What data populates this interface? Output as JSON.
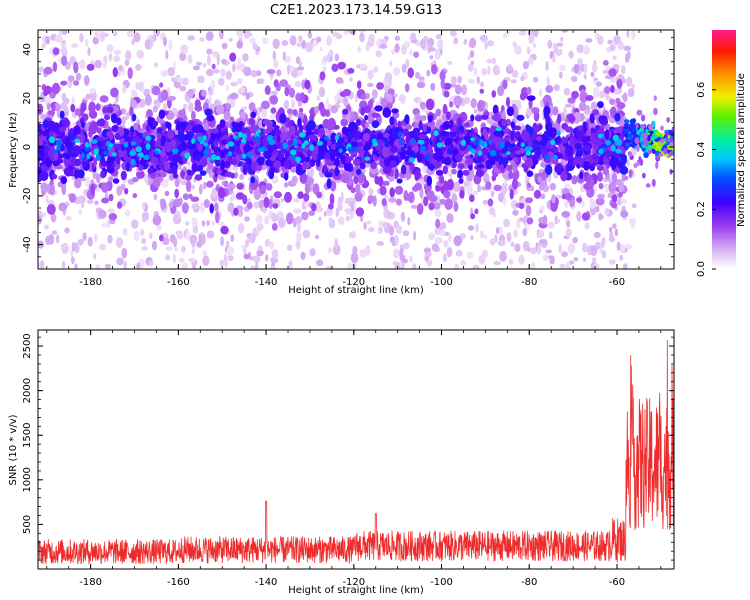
{
  "title": "C2E1.2023.173.14.59.G13",
  "chart_data": [
    {
      "type": "heatmap",
      "xlabel": "Height of straight line (km)",
      "ylabel": "Frequency (Hz)",
      "xlim": [
        -192,
        -47
      ],
      "ylim": [
        -50,
        48
      ],
      "xticks": [
        -180,
        -160,
        -140,
        -120,
        -100,
        -80,
        -60
      ],
      "yticks": [
        -40,
        -20,
        0,
        20,
        40
      ],
      "colorbar": {
        "label": "Normalized spectral amplitude",
        "range": [
          0,
          0.8
        ],
        "ticks": [
          0.0,
          0.2,
          0.4,
          0.6
        ],
        "colormap": "rainbow (white-lavender-violet-blue-cyan-green-yellow-red-magenta)"
      },
      "description_of_distribution": {
        "band_center_hz": 0,
        "band_halfwidth_hz_core": 7,
        "band_halfwidth_hz_scatter": 22,
        "cutoff_x_km": -58,
        "after_cutoff_band": "narrow band, slightly decreasing frequency, higher amplitude (cyan to yellow)"
      }
    },
    {
      "type": "line",
      "xlabel": "Height of straight line (km)",
      "ylabel": "SNR (10 * v/v)",
      "xlim": [
        -192,
        -47
      ],
      "ylim": [
        0,
        2680
      ],
      "xticks": [
        -180,
        -160,
        -140,
        -120,
        -100,
        -80,
        -60
      ],
      "yticks": [
        500,
        1000,
        1500,
        2000,
        2500
      ],
      "series": [
        {
          "color": "#ee2b2b",
          "segments": [
            {
              "x": [
                -192,
                -160
              ],
              "baseline": 180,
              "noise": 280
            },
            {
              "x": [
                -160,
                -120
              ],
              "baseline": 200,
              "noise": 300,
              "spike": {
                "x": -140,
                "y": 760
              }
            },
            {
              "x": [
                -120,
                -62
              ],
              "baseline": 240,
              "noise": 340,
              "spike": {
                "x": -115,
                "y": 620
              }
            },
            {
              "x": [
                -62,
                -58
              ],
              "baseline": 300,
              "noise": 500
            },
            {
              "x": [
                -58,
                -47
              ],
              "baseline": 1100,
              "noise": 1500,
              "max": 2680
            }
          ]
        }
      ]
    }
  ]
}
